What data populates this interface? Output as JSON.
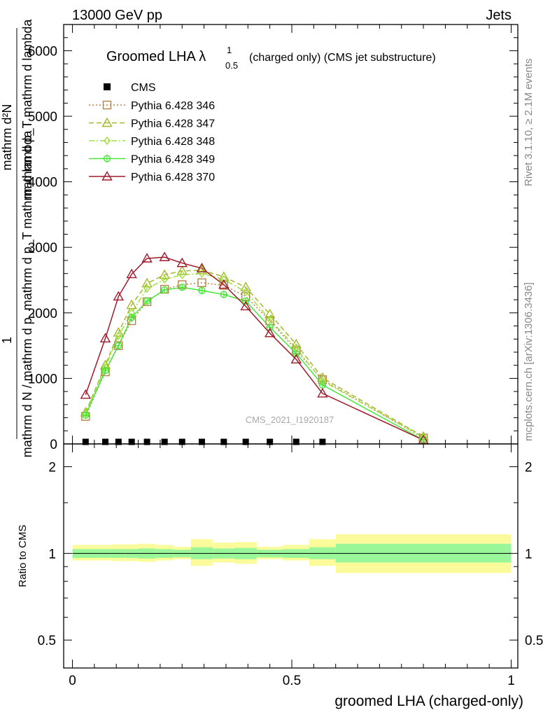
{
  "header": {
    "energy_label": "13000 GeV pp",
    "process_label": "Jets",
    "rivet_label": "Rivet 3.1.10, ≥ 2.1M events",
    "mcplots_label": "mcplots.cern.ch [arXiv:1306.3436]",
    "analysis_id": "CMS_2021_I1920187"
  },
  "chart_data": [
    {
      "type": "line",
      "panel": "main",
      "title": "Groomed LHA λ",
      "title_superscript": "1",
      "title_subscript": "0.5",
      "title_suffix": "(charged only) (CMS jet substructure)",
      "ylabel_lines": [
        "1",
        "mathrm d N / mathrm d p_mathrm d p_T mathrm d lambda",
        "mathrm d²N",
        "mathrm d p_T mathrm d lambda"
      ],
      "ylim": [
        0,
        6400
      ],
      "yticks": [
        0,
        1000,
        2000,
        3000,
        4000,
        5000,
        6000
      ],
      "ytick_labels": [
        "0",
        "1000",
        "2000",
        "3000",
        "4000",
        "5000",
        "6000"
      ],
      "xlim": [
        0,
        1
      ],
      "legend_position": "top-left",
      "reference": {
        "name": "CMS",
        "color": "#000000",
        "x": [
          0.03,
          0.075,
          0.105,
          0.135,
          0.17,
          0.21,
          0.25,
          0.295,
          0.345,
          0.395,
          0.45,
          0.51,
          0.57
        ],
        "y": [
          10,
          10,
          10,
          10,
          10,
          10,
          10,
          10,
          10,
          10,
          10,
          10,
          10
        ]
      },
      "x": [
        0.03,
        0.075,
        0.105,
        0.135,
        0.17,
        0.21,
        0.25,
        0.295,
        0.345,
        0.395,
        0.45,
        0.51,
        0.57,
        0.8
      ],
      "series": [
        {
          "name": "Pythia 6.428 346",
          "color": "#b5844a",
          "marker": "square",
          "dash": "2,3",
          "values": [
            420,
            1100,
            1500,
            1880,
            2170,
            2360,
            2430,
            2460,
            2420,
            2250,
            1880,
            1430,
            980,
            90
          ]
        },
        {
          "name": "Pythia 6.428 347",
          "color": "#a5b82a",
          "marker": "triangle",
          "dash": "7,4",
          "values": [
            480,
            1200,
            1700,
            2120,
            2450,
            2580,
            2640,
            2650,
            2550,
            2390,
            1980,
            1520,
            1010,
            110
          ]
        },
        {
          "name": "Pythia 6.428 348",
          "color": "#9ee03a",
          "marker": "diamond",
          "dash": "8,3,2,3",
          "values": [
            470,
            1170,
            1650,
            2000,
            2370,
            2510,
            2580,
            2600,
            2510,
            2320,
            1900,
            1460,
            960,
            100
          ]
        },
        {
          "name": "Pythia 6.428 349",
          "color": "#47e83a",
          "marker": "plus-circle",
          "dash": "",
          "values": [
            440,
            1120,
            1500,
            1930,
            2180,
            2350,
            2390,
            2340,
            2280,
            2180,
            1780,
            1380,
            900,
            60
          ]
        },
        {
          "name": "Pythia 6.428 370",
          "color": "#9e1a2a",
          "marker": "triangle",
          "dash": "",
          "values": [
            750,
            1610,
            2250,
            2590,
            2830,
            2850,
            2760,
            2680,
            2430,
            2100,
            1690,
            1290,
            770,
            60
          ]
        }
      ]
    },
    {
      "type": "area",
      "panel": "ratio",
      "ylabel": "Ratio to CMS",
      "ylim": [
        0.4,
        2.4
      ],
      "scale": "log",
      "yticks": [
        0.5,
        1,
        2
      ],
      "ytick_labels": [
        "0.5",
        "1",
        "2"
      ],
      "xlim": [
        0,
        1
      ],
      "xticks": [
        0,
        0.5,
        1
      ],
      "xtick_labels": [
        "0",
        "0.5",
        "1"
      ],
      "xlabel": "groomed LHA (charged-only)",
      "reference_line": 1,
      "band_colors": {
        "inner": "#99f799",
        "outer": "#fbfb9b"
      },
      "bins": [
        {
          "x0": 0.0,
          "x1": 0.06,
          "inner": [
            0.965,
            1.035
          ],
          "outer": [
            0.945,
            1.07
          ]
        },
        {
          "x0": 0.06,
          "x1": 0.09,
          "inner": [
            0.965,
            1.035
          ],
          "outer": [
            0.945,
            1.07
          ]
        },
        {
          "x0": 0.09,
          "x1": 0.12,
          "inner": [
            0.965,
            1.035
          ],
          "outer": [
            0.94,
            1.075
          ]
        },
        {
          "x0": 0.12,
          "x1": 0.15,
          "inner": [
            0.965,
            1.035
          ],
          "outer": [
            0.94,
            1.075
          ]
        },
        {
          "x0": 0.15,
          "x1": 0.19,
          "inner": [
            0.96,
            1.04
          ],
          "outer": [
            0.935,
            1.08
          ]
        },
        {
          "x0": 0.19,
          "x1": 0.23,
          "inner": [
            0.965,
            1.035
          ],
          "outer": [
            0.945,
            1.07
          ]
        },
        {
          "x0": 0.23,
          "x1": 0.27,
          "inner": [
            0.97,
            1.03
          ],
          "outer": [
            0.955,
            1.055
          ]
        },
        {
          "x0": 0.27,
          "x1": 0.32,
          "inner": [
            0.955,
            1.05
          ],
          "outer": [
            0.905,
            1.12
          ]
        },
        {
          "x0": 0.32,
          "x1": 0.37,
          "inner": [
            0.96,
            1.04
          ],
          "outer": [
            0.93,
            1.09
          ]
        },
        {
          "x0": 0.37,
          "x1": 0.42,
          "inner": [
            0.955,
            1.045
          ],
          "outer": [
            0.92,
            1.095
          ]
        },
        {
          "x0": 0.42,
          "x1": 0.48,
          "inner": [
            0.97,
            1.03
          ],
          "outer": [
            0.955,
            1.055
          ]
        },
        {
          "x0": 0.48,
          "x1": 0.54,
          "inner": [
            0.965,
            1.035
          ],
          "outer": [
            0.945,
            1.07
          ]
        },
        {
          "x0": 0.54,
          "x1": 0.6,
          "inner": [
            0.955,
            1.05
          ],
          "outer": [
            0.905,
            1.12
          ]
        },
        {
          "x0": 0.6,
          "x1": 1.0,
          "inner": [
            0.93,
            1.08
          ],
          "outer": [
            0.855,
            1.165
          ]
        }
      ]
    }
  ]
}
